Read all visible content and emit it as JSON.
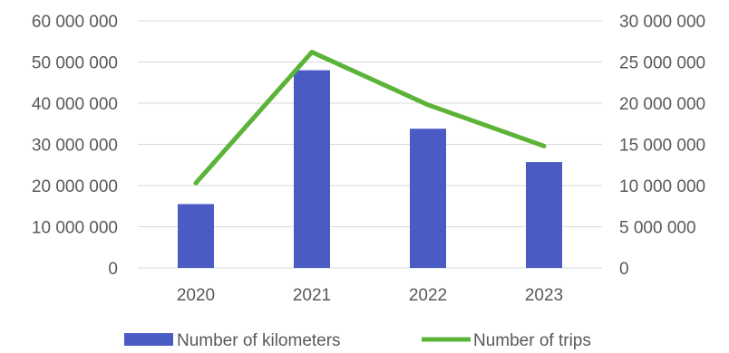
{
  "chart_data": {
    "type": "bar",
    "categories": [
      "2020",
      "2021",
      "2022",
      "2023"
    ],
    "series": [
      {
        "name": "Number of kilometers",
        "type": "bar",
        "axis": "left",
        "color": "#4a5bc4",
        "values": [
          15500000,
          48000000,
          33800000,
          25700000
        ]
      },
      {
        "name": "Number of trips",
        "type": "line",
        "axis": "right",
        "color": "#5bb337",
        "values": [
          10300000,
          26200000,
          19800000,
          14800000
        ]
      }
    ],
    "y_left": {
      "ylim": [
        0,
        60000000
      ],
      "ticks": [
        "0",
        "10 000 000",
        "20 000 000",
        "30 000 000",
        "40 000 000",
        "50 000 000",
        "60 000 000"
      ]
    },
    "y_right": {
      "ylim": [
        0,
        30000000
      ],
      "ticks": [
        "0",
        "5 000 000",
        "10 000 000",
        "15 000 000",
        "20 000 000",
        "25 000 000",
        "30 000 000"
      ]
    },
    "grid": true,
    "legend_position": "bottom"
  }
}
